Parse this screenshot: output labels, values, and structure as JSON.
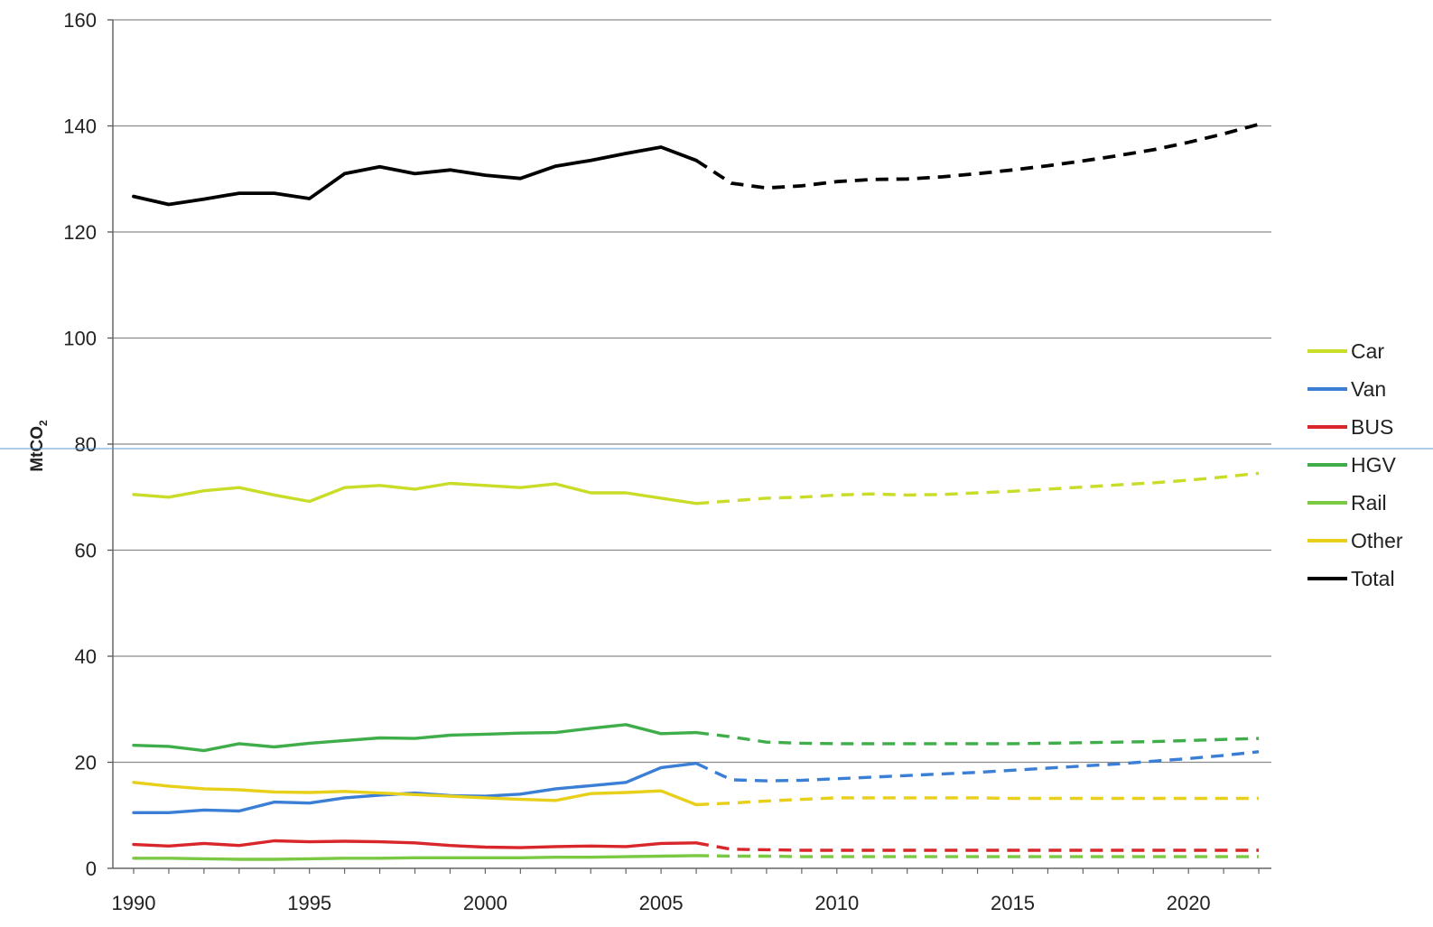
{
  "chart_data": {
    "type": "line",
    "title": "",
    "xlabel": "",
    "ylabel": "MtCO",
    "ylabel_subscript": "2",
    "xlim": [
      1989.5,
      2023
    ],
    "ylim": [
      0,
      160
    ],
    "x_ticks": [
      1990,
      1995,
      2000,
      2005,
      2010,
      2015,
      2020
    ],
    "x_tick_labels": [
      "1990",
      "1995",
      "2000",
      "2005",
      "2010",
      "2015",
      "2020"
    ],
    "y_ticks": [
      0,
      20,
      40,
      60,
      80,
      100,
      120,
      140,
      160
    ],
    "y_tick_labels": [
      "0",
      "20",
      "40",
      "60",
      "80",
      "100",
      "120",
      "140",
      "160"
    ],
    "grid": "horizontal",
    "legend_position": "right",
    "historical_years": [
      1990,
      1991,
      1992,
      1993,
      1994,
      1995,
      1996,
      1997,
      1998,
      1999,
      2000,
      2001,
      2002,
      2003,
      2004,
      2005,
      2006
    ],
    "projection_years": [
      2006,
      2007,
      2008,
      2009,
      2010,
      2011,
      2012,
      2013,
      2014,
      2015,
      2016,
      2017,
      2018,
      2019,
      2020,
      2021,
      2022
    ],
    "series": [
      {
        "name": "Car",
        "color": "#c8dc28",
        "historical": [
          70.5,
          70.0,
          71.2,
          71.8,
          70.4,
          69.2,
          71.8,
          72.2,
          71.5,
          72.6,
          72.2,
          71.8,
          72.5,
          70.8,
          70.8,
          69.8,
          68.8
        ],
        "projection": [
          68.8,
          69.3,
          69.8,
          70.0,
          70.4,
          70.6,
          70.4,
          70.5,
          70.8,
          71.1,
          71.5,
          71.9,
          72.3,
          72.7,
          73.2,
          73.8,
          74.5
        ]
      },
      {
        "name": "Van",
        "color": "#3a7fd5",
        "historical": [
          10.5,
          10.5,
          11.0,
          10.8,
          12.5,
          12.3,
          13.3,
          13.8,
          14.2,
          13.7,
          13.6,
          14.0,
          15.0,
          15.6,
          16.2,
          19.0,
          19.8
        ],
        "projection": [
          19.8,
          16.7,
          16.5,
          16.6,
          16.9,
          17.2,
          17.5,
          17.8,
          18.1,
          18.5,
          18.9,
          19.3,
          19.7,
          20.2,
          20.7,
          21.3,
          22.0
        ]
      },
      {
        "name": "BUS",
        "color": "#d8262a",
        "historical": [
          4.5,
          4.2,
          4.7,
          4.3,
          5.2,
          5.0,
          5.1,
          5.0,
          4.8,
          4.3,
          4.0,
          3.9,
          4.1,
          4.2,
          4.1,
          4.7,
          4.8
        ],
        "projection": [
          4.8,
          3.6,
          3.5,
          3.4,
          3.4,
          3.4,
          3.4,
          3.4,
          3.4,
          3.4,
          3.4,
          3.4,
          3.4,
          3.4,
          3.4,
          3.4,
          3.4
        ]
      },
      {
        "name": "HGV",
        "color": "#3fae4a",
        "historical": [
          23.2,
          23.0,
          22.2,
          23.5,
          22.9,
          23.6,
          24.1,
          24.6,
          24.5,
          25.1,
          25.3,
          25.5,
          25.6,
          26.4,
          27.1,
          25.4,
          25.6
        ],
        "projection": [
          25.6,
          24.8,
          23.8,
          23.6,
          23.5,
          23.5,
          23.5,
          23.5,
          23.5,
          23.5,
          23.6,
          23.7,
          23.8,
          23.9,
          24.1,
          24.3,
          24.5
        ]
      },
      {
        "name": "Rail",
        "color": "#7ac943",
        "historical": [
          1.9,
          1.9,
          1.8,
          1.7,
          1.7,
          1.8,
          1.9,
          1.9,
          2.0,
          2.0,
          2.0,
          2.0,
          2.1,
          2.1,
          2.2,
          2.3,
          2.4
        ],
        "projection": [
          2.4,
          2.3,
          2.3,
          2.2,
          2.2,
          2.2,
          2.2,
          2.2,
          2.2,
          2.2,
          2.2,
          2.2,
          2.2,
          2.2,
          2.2,
          2.2,
          2.2
        ]
      },
      {
        "name": "Other",
        "color": "#e8cf1a",
        "historical": [
          16.2,
          15.5,
          15.0,
          14.8,
          14.4,
          14.3,
          14.5,
          14.2,
          13.9,
          13.6,
          13.3,
          13.0,
          12.8,
          14.1,
          14.3,
          14.6,
          12.0
        ],
        "projection": [
          12.0,
          12.3,
          12.7,
          13.0,
          13.3,
          13.3,
          13.3,
          13.3,
          13.3,
          13.2,
          13.2,
          13.2,
          13.2,
          13.2,
          13.2,
          13.2,
          13.2
        ]
      },
      {
        "name": "Total",
        "color": "#000000",
        "historical": [
          126.7,
          125.2,
          126.2,
          127.3,
          127.3,
          126.3,
          131.0,
          132.3,
          131.0,
          131.7,
          130.7,
          130.1,
          132.4,
          133.5,
          134.8,
          136.0,
          133.5
        ],
        "projection": [
          133.5,
          129.2,
          128.3,
          128.7,
          129.5,
          129.9,
          130.0,
          130.4,
          131.0,
          131.7,
          132.5,
          133.4,
          134.4,
          135.5,
          136.9,
          138.5,
          140.3
        ]
      }
    ]
  }
}
